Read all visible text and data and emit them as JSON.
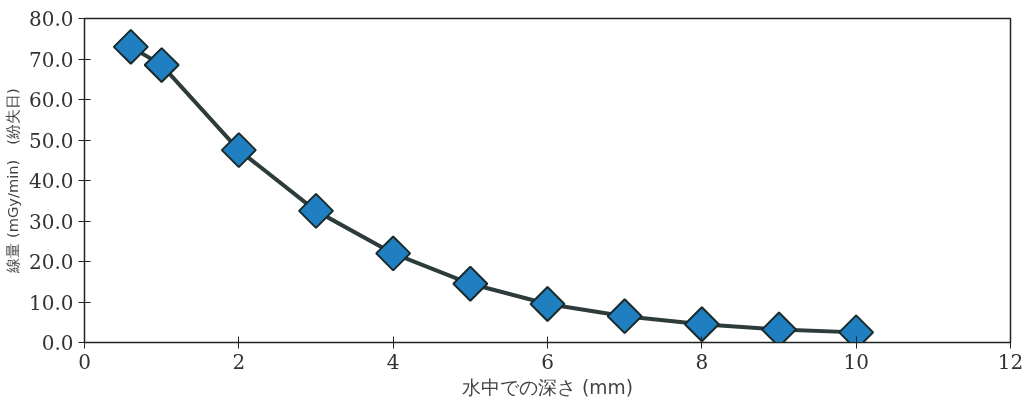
{
  "chart_data": {
    "type": "line",
    "xlabel": "水中での深さ (mm)",
    "ylabel": "線量 (mGy/min)　(紛失日)",
    "x": [
      0.6,
      1,
      2,
      3,
      4,
      5,
      6,
      7,
      8,
      9,
      10
    ],
    "series": [
      {
        "color": "#1f7fc0",
        "values": [
          73,
          68.5,
          47.5,
          32.5,
          22,
          14.5,
          9.5,
          6.5,
          4.5,
          3.2,
          2.5
        ]
      }
    ],
    "xlim": [
      0,
      12
    ],
    "xticks": [
      0,
      2,
      4,
      6,
      8,
      10,
      12
    ],
    "ylim": [
      0,
      80
    ],
    "yticks": [
      {
        "value": 0,
        "label": "0.0"
      },
      {
        "value": 10,
        "label": "10.0"
      },
      {
        "value": 20,
        "label": "20.0"
      },
      {
        "value": 30,
        "label": "30.0"
      },
      {
        "value": 40,
        "label": "40.0"
      },
      {
        "value": 50,
        "label": "50.0"
      },
      {
        "value": 60,
        "label": "60.0"
      },
      {
        "value": 70,
        "label": "70.0"
      },
      {
        "value": 80,
        "label": "80.0"
      }
    ],
    "grid": false,
    "marker": "diamond",
    "line_style": "solid"
  }
}
